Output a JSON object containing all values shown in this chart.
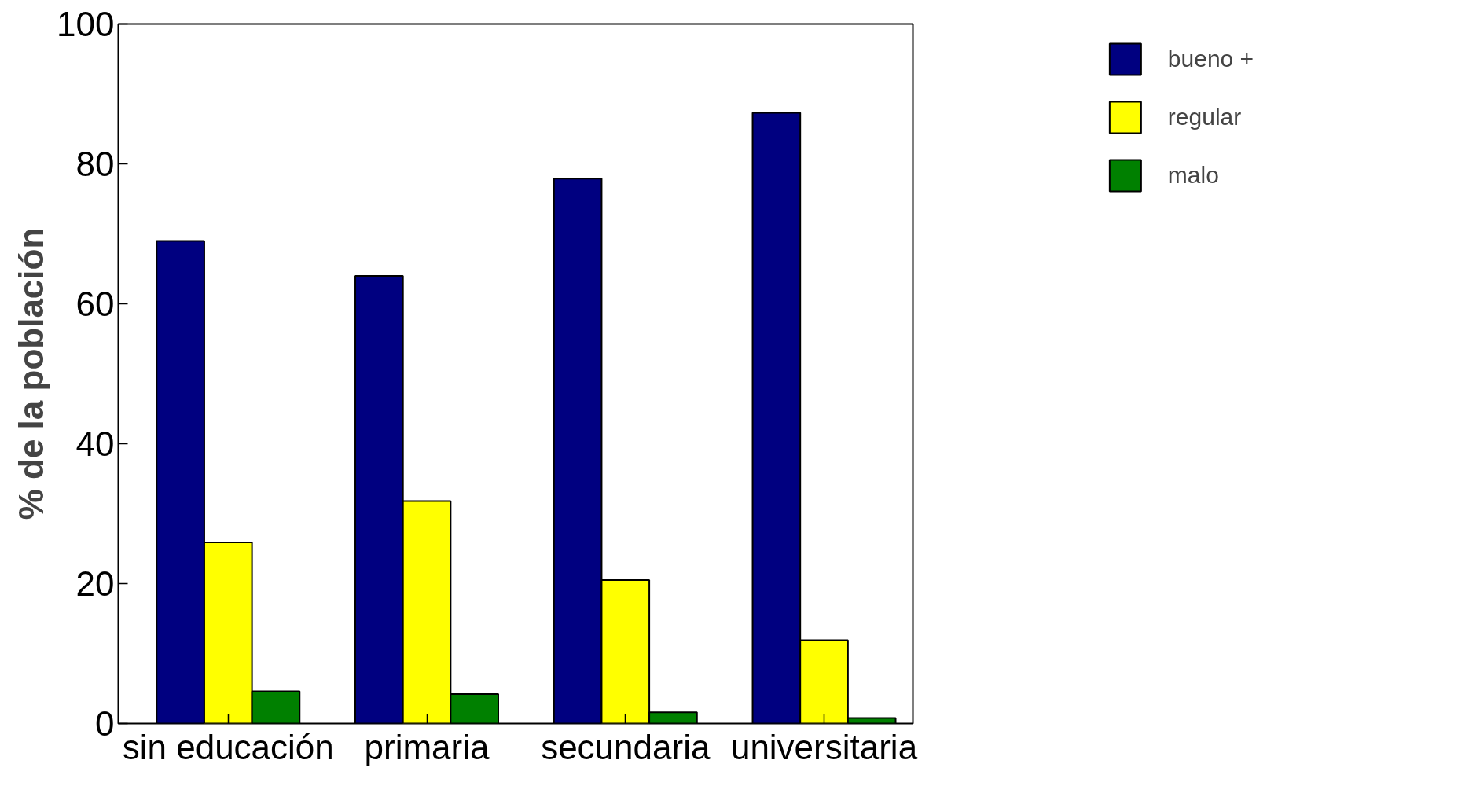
{
  "chart_data": {
    "type": "bar",
    "ylabel": "% de la población",
    "categories": [
      "sin educación",
      "primaria",
      "secundaria",
      "universitaria"
    ],
    "series": [
      {
        "name": "bueno +",
        "color": "#000080",
        "values": [
          69.0,
          64.0,
          77.9,
          87.3
        ]
      },
      {
        "name": "regular",
        "color": "#ffff00",
        "values": [
          25.9,
          31.8,
          20.5,
          11.9
        ]
      },
      {
        "name": "malo",
        "color": "#008000",
        "values": [
          4.6,
          4.2,
          1.6,
          0.8
        ]
      }
    ],
    "ylim": [
      0,
      100
    ],
    "yticks": [
      0,
      20,
      40,
      60,
      80,
      100
    ],
    "grid": false,
    "legend": "top right"
  }
}
